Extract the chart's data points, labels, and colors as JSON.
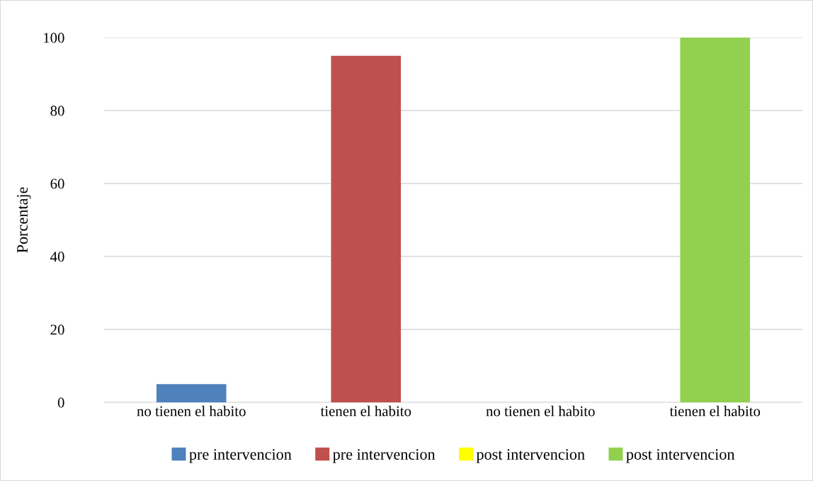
{
  "chart_data": {
    "type": "bar",
    "ylabel": "Porcentaje",
    "categories": [
      "no tienen el habito",
      "tienen el habito",
      "no tienen el habito",
      "tienen el habito"
    ],
    "stacked": true,
    "series": [
      {
        "name": "pre intervencion",
        "color": "#4f81bd",
        "values": [
          5,
          null,
          null,
          null
        ]
      },
      {
        "name": "pre intervencion",
        "color": "#c0504d",
        "values": [
          null,
          95,
          null,
          null
        ]
      },
      {
        "name": "post intervencion",
        "color": "#ffff00",
        "values": [
          null,
          null,
          0,
          null
        ]
      },
      {
        "name": "post intervencion",
        "color": "#92d050",
        "values": [
          null,
          null,
          null,
          100
        ]
      }
    ],
    "ylim": [
      0,
      100
    ],
    "yticks": [
      0,
      20,
      40,
      60,
      80,
      100
    ],
    "grid": "y",
    "legend": "bottom"
  }
}
